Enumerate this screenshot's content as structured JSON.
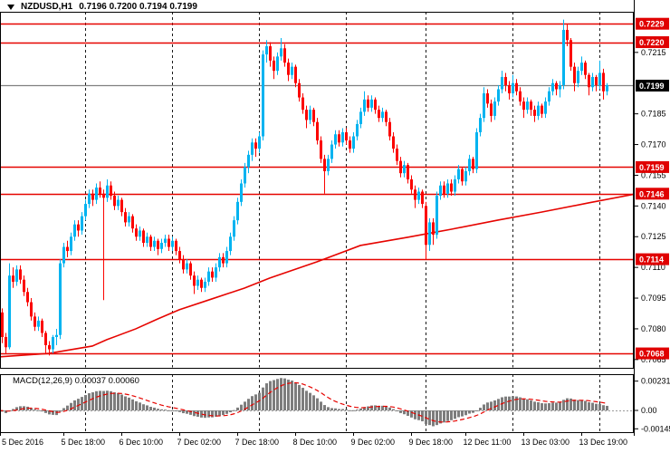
{
  "window": {
    "symbol_period": "NZDUSD,H1",
    "ohlc_line": "0.7196 0.7200 0.7194 0.7199"
  },
  "indicator": {
    "macd_label": "MACD(12,26,9) 0.00037 0.00060"
  },
  "colors": {
    "bull": "#00b3f0",
    "bear": "#fb0300",
    "level_line": "#e60400",
    "level_badge": "#e00000",
    "ma_line": "#e60400",
    "current_line": "#808080",
    "current_badge": "#000000",
    "histogram": "#7d7d7d",
    "signal_line": "#e60400",
    "zero_line": "#9a9a9a",
    "separator": "#1a1a1a",
    "axis_text": "#000000",
    "border": "#000000"
  },
  "price_axis": {
    "ticks": [
      {
        "label": "0.7215",
        "price": 0.7215
      },
      {
        "label": "0.7185",
        "price": 0.7185
      },
      {
        "label": "0.7170",
        "price": 0.717
      },
      {
        "label": "0.7155",
        "price": 0.7155
      },
      {
        "label": "0.7140",
        "price": 0.714
      },
      {
        "label": "0.7125",
        "price": 0.7125
      },
      {
        "label": "0.7110",
        "price": 0.711
      },
      {
        "label": "0.7095",
        "price": 0.7095
      },
      {
        "label": "0.7080",
        "price": 0.708
      },
      {
        "label": "0.7065",
        "price": 0.7065
      }
    ],
    "current": {
      "label": "0.7199",
      "price": 0.7199
    }
  },
  "time_axis": {
    "labels": [
      {
        "text": "5 Dec 2016",
        "bar": 0
      },
      {
        "text": "5 Dec 18:00",
        "bar": 18
      },
      {
        "text": "6 Dec 10:00",
        "bar": 34
      },
      {
        "text": "7 Dec 02:00",
        "bar": 50
      },
      {
        "text": "7 Dec 18:00",
        "bar": 66
      },
      {
        "text": "8 Dec 10:00",
        "bar": 82
      },
      {
        "text": "9 Dec 02:00",
        "bar": 98
      },
      {
        "text": "9 Dec 18:00",
        "bar": 114
      },
      {
        "text": "12 Dec 11:00",
        "bar": 129
      },
      {
        "text": "13 Dec 03:00",
        "bar": 145
      },
      {
        "text": "13 Dec 19:00",
        "bar": 161
      }
    ]
  },
  "chart_data": {
    "type": "candlestick",
    "symbol": "NZDUSD",
    "timeframe": "H1",
    "title": "NZDUSD,H1 0.7196 0.7200 0.7194 0.7199",
    "grid": false,
    "price_range_visible": [
      0.706,
      0.7236
    ],
    "horizontal_levels": [
      {
        "price": 0.7229,
        "label": "0.7229"
      },
      {
        "price": 0.722,
        "label": "0.7220"
      },
      {
        "price": 0.7159,
        "label": "0.7159"
      },
      {
        "price": 0.7146,
        "label": "0.7146"
      },
      {
        "price": 0.7114,
        "label": "0.7114"
      },
      {
        "price": 0.7068,
        "label": "0.7068"
      }
    ],
    "current_price": 0.7199,
    "day_separator_bars": [
      24,
      48,
      72,
      96,
      118,
      142,
      166
    ],
    "ma_trend_line": [
      [
        0,
        0.70663
      ],
      [
        14,
        0.7068
      ],
      [
        26,
        0.70716
      ],
      [
        30,
        0.70747
      ],
      [
        38,
        0.708
      ],
      [
        44,
        0.70848
      ],
      [
        50,
        0.70893
      ],
      [
        59,
        0.70946
      ],
      [
        68,
        0.70999
      ],
      [
        75,
        0.71048
      ],
      [
        88,
        0.71127
      ],
      [
        100,
        0.71207
      ],
      [
        113,
        0.71247
      ],
      [
        125,
        0.71286
      ],
      [
        138,
        0.71331
      ],
      [
        150,
        0.7137
      ],
      [
        163,
        0.71415
      ],
      [
        176,
        0.71459
      ]
    ],
    "ohlc": [
      [
        0.71,
        0.7102,
        0.7086,
        0.7088
      ],
      [
        0.7088,
        0.709,
        0.7073,
        0.7076
      ],
      [
        0.7076,
        0.7078,
        0.7068,
        0.7071
      ],
      [
        0.7071,
        0.7112,
        0.707,
        0.7106
      ],
      [
        0.7106,
        0.711,
        0.71,
        0.7103
      ],
      [
        0.7103,
        0.7111,
        0.7101,
        0.7109
      ],
      [
        0.7109,
        0.7111,
        0.7102,
        0.7104
      ],
      [
        0.7104,
        0.7106,
        0.7096,
        0.7098
      ],
      [
        0.7098,
        0.71,
        0.7091,
        0.7093
      ],
      [
        0.7093,
        0.7095,
        0.7084,
        0.7086
      ],
      [
        0.7086,
        0.7088,
        0.7079,
        0.7081
      ],
      [
        0.7081,
        0.7086,
        0.7079,
        0.7084
      ],
      [
        0.7084,
        0.7085,
        0.7076,
        0.7078
      ],
      [
        0.7078,
        0.7079,
        0.7068,
        0.7072
      ],
      [
        0.7072,
        0.7074,
        0.7067,
        0.707
      ],
      [
        0.707,
        0.7077,
        0.7068,
        0.7076
      ],
      [
        0.7076,
        0.708,
        0.7072,
        0.7077
      ],
      [
        0.7077,
        0.7114,
        0.7075,
        0.7112
      ],
      [
        0.7112,
        0.7122,
        0.711,
        0.712
      ],
      [
        0.712,
        0.7123,
        0.7115,
        0.7118
      ],
      [
        0.7118,
        0.7127,
        0.7116,
        0.7125
      ],
      [
        0.7125,
        0.7133,
        0.7123,
        0.7131
      ],
      [
        0.7131,
        0.7133,
        0.7125,
        0.7128
      ],
      [
        0.7128,
        0.7137,
        0.7126,
        0.7135
      ],
      [
        0.7135,
        0.7143,
        0.7133,
        0.7141
      ],
      [
        0.7141,
        0.7148,
        0.7139,
        0.7146
      ],
      [
        0.7146,
        0.7148,
        0.714,
        0.7143
      ],
      [
        0.7143,
        0.7151,
        0.7141,
        0.7149
      ],
      [
        0.7149,
        0.7152,
        0.7144,
        0.7146
      ],
      [
        0.7146,
        0.7148,
        0.7094,
        0.7144
      ],
      [
        0.7144,
        0.7153,
        0.7142,
        0.715
      ],
      [
        0.715,
        0.7152,
        0.7143,
        0.7145
      ],
      [
        0.7145,
        0.7147,
        0.7138,
        0.714
      ],
      [
        0.714,
        0.7145,
        0.7138,
        0.7143
      ],
      [
        0.7143,
        0.7144,
        0.7135,
        0.7137
      ],
      [
        0.7137,
        0.7139,
        0.713,
        0.7132
      ],
      [
        0.7132,
        0.7137,
        0.713,
        0.7135
      ],
      [
        0.7135,
        0.7136,
        0.7127,
        0.7129
      ],
      [
        0.7129,
        0.7131,
        0.7123,
        0.7125
      ],
      [
        0.7125,
        0.713,
        0.7123,
        0.7128
      ],
      [
        0.7128,
        0.7129,
        0.712,
        0.7122
      ],
      [
        0.7122,
        0.7127,
        0.712,
        0.7125
      ],
      [
        0.7125,
        0.7126,
        0.7118,
        0.712
      ],
      [
        0.712,
        0.7125,
        0.7118,
        0.7123
      ],
      [
        0.7123,
        0.7124,
        0.7116,
        0.7119
      ],
      [
        0.7119,
        0.7124,
        0.7117,
        0.7122
      ],
      [
        0.7122,
        0.7126,
        0.712,
        0.7124
      ],
      [
        0.7124,
        0.7126,
        0.7118,
        0.712
      ],
      [
        0.712,
        0.7125,
        0.7118,
        0.7123
      ],
      [
        0.7123,
        0.7124,
        0.7116,
        0.7118
      ],
      [
        0.7118,
        0.712,
        0.7112,
        0.7114
      ],
      [
        0.7114,
        0.7116,
        0.7107,
        0.7109
      ],
      [
        0.7109,
        0.7114,
        0.7107,
        0.7112
      ],
      [
        0.7112,
        0.7113,
        0.7104,
        0.7106
      ],
      [
        0.7106,
        0.7108,
        0.7097,
        0.7101
      ],
      [
        0.7101,
        0.7106,
        0.7099,
        0.7104
      ],
      [
        0.7104,
        0.7105,
        0.7098,
        0.71
      ],
      [
        0.71,
        0.7105,
        0.7098,
        0.7103
      ],
      [
        0.7103,
        0.711,
        0.7101,
        0.7108
      ],
      [
        0.7108,
        0.711,
        0.7103,
        0.7105
      ],
      [
        0.7105,
        0.7112,
        0.7103,
        0.711
      ],
      [
        0.711,
        0.7117,
        0.7108,
        0.7115
      ],
      [
        0.7115,
        0.7117,
        0.711,
        0.7112
      ],
      [
        0.7112,
        0.712,
        0.711,
        0.7118
      ],
      [
        0.7118,
        0.7127,
        0.7116,
        0.7125
      ],
      [
        0.7125,
        0.7135,
        0.7123,
        0.7133
      ],
      [
        0.7133,
        0.7144,
        0.7131,
        0.7142
      ],
      [
        0.7142,
        0.7153,
        0.714,
        0.7151
      ],
      [
        0.7151,
        0.7161,
        0.7149,
        0.7159
      ],
      [
        0.7159,
        0.7167,
        0.7156,
        0.7165
      ],
      [
        0.7165,
        0.7173,
        0.7162,
        0.7171
      ],
      [
        0.7171,
        0.7173,
        0.7164,
        0.7168
      ],
      [
        0.7168,
        0.7176,
        0.7166,
        0.7174
      ],
      [
        0.7174,
        0.7216,
        0.7172,
        0.7214
      ],
      [
        0.7214,
        0.7221,
        0.721,
        0.7218
      ],
      [
        0.7218,
        0.722,
        0.7208,
        0.7211
      ],
      [
        0.7211,
        0.7213,
        0.7202,
        0.7206
      ],
      [
        0.7206,
        0.7215,
        0.7204,
        0.7213
      ],
      [
        0.7213,
        0.7222,
        0.7211,
        0.7217
      ],
      [
        0.7217,
        0.7219,
        0.7208,
        0.721
      ],
      [
        0.721,
        0.7212,
        0.7201,
        0.7204
      ],
      [
        0.7204,
        0.721,
        0.7202,
        0.7208
      ],
      [
        0.7208,
        0.7209,
        0.7198,
        0.72
      ],
      [
        0.72,
        0.7202,
        0.7191,
        0.7193
      ],
      [
        0.7193,
        0.7195,
        0.7185,
        0.7187
      ],
      [
        0.7187,
        0.7189,
        0.7178,
        0.7182
      ],
      [
        0.7182,
        0.7189,
        0.718,
        0.7187
      ],
      [
        0.7187,
        0.7188,
        0.7179,
        0.7181
      ],
      [
        0.7181,
        0.7183,
        0.717,
        0.7172
      ],
      [
        0.7172,
        0.7174,
        0.7161,
        0.7163
      ],
      [
        0.7163,
        0.7165,
        0.7146,
        0.7157
      ],
      [
        0.7157,
        0.7165,
        0.7155,
        0.7163
      ],
      [
        0.7163,
        0.7172,
        0.7161,
        0.717
      ],
      [
        0.717,
        0.7177,
        0.7168,
        0.7175
      ],
      [
        0.7175,
        0.7177,
        0.7169,
        0.7171
      ],
      [
        0.7171,
        0.7178,
        0.7169,
        0.7176
      ],
      [
        0.7176,
        0.7178,
        0.717,
        0.7172
      ],
      [
        0.7172,
        0.7174,
        0.7166,
        0.7168
      ],
      [
        0.7168,
        0.7176,
        0.7166,
        0.7174
      ],
      [
        0.7174,
        0.7182,
        0.7172,
        0.718
      ],
      [
        0.718,
        0.7188,
        0.7178,
        0.7186
      ],
      [
        0.7186,
        0.7196,
        0.7184,
        0.7192
      ],
      [
        0.7192,
        0.7194,
        0.7186,
        0.7188
      ],
      [
        0.7188,
        0.7194,
        0.7186,
        0.7192
      ],
      [
        0.7192,
        0.7193,
        0.7185,
        0.7187
      ],
      [
        0.7187,
        0.7189,
        0.7181,
        0.7183
      ],
      [
        0.7183,
        0.7188,
        0.7181,
        0.7186
      ],
      [
        0.7186,
        0.7187,
        0.7179,
        0.7181
      ],
      [
        0.7181,
        0.7183,
        0.7172,
        0.7174
      ],
      [
        0.7174,
        0.7176,
        0.7166,
        0.7168
      ],
      [
        0.7168,
        0.717,
        0.716,
        0.7162
      ],
      [
        0.7162,
        0.7164,
        0.7154,
        0.7156
      ],
      [
        0.7156,
        0.7162,
        0.7154,
        0.716
      ],
      [
        0.716,
        0.7161,
        0.7151,
        0.7153
      ],
      [
        0.7153,
        0.7155,
        0.7146,
        0.7148
      ],
      [
        0.7148,
        0.715,
        0.7139,
        0.7143
      ],
      [
        0.7143,
        0.7149,
        0.7141,
        0.7147
      ],
      [
        0.7147,
        0.7148,
        0.7139,
        0.7141
      ],
      [
        0.714,
        0.7142,
        0.7114,
        0.7121
      ],
      [
        0.7121,
        0.7134,
        0.7118,
        0.7132
      ],
      [
        0.7132,
        0.7134,
        0.7121,
        0.7126
      ],
      [
        0.7126,
        0.7147,
        0.7124,
        0.7145
      ],
      [
        0.7145,
        0.7152,
        0.7143,
        0.715
      ],
      [
        0.715,
        0.7152,
        0.7144,
        0.7146
      ],
      [
        0.7146,
        0.7153,
        0.7144,
        0.7151
      ],
      [
        0.7151,
        0.7153,
        0.7145,
        0.7147
      ],
      [
        0.7147,
        0.7155,
        0.7145,
        0.7153
      ],
      [
        0.7153,
        0.716,
        0.7151,
        0.7158
      ],
      [
        0.7158,
        0.7159,
        0.715,
        0.7152
      ],
      [
        0.7152,
        0.7159,
        0.715,
        0.7157
      ],
      [
        0.7157,
        0.7165,
        0.7155,
        0.7163
      ],
      [
        0.7163,
        0.7164,
        0.7156,
        0.7158
      ],
      [
        0.7158,
        0.7178,
        0.7156,
        0.7176
      ],
      [
        0.7176,
        0.7185,
        0.7174,
        0.7183
      ],
      [
        0.7183,
        0.7198,
        0.7181,
        0.7195
      ],
      [
        0.7195,
        0.7197,
        0.7188,
        0.719
      ],
      [
        0.719,
        0.7192,
        0.7181,
        0.7184
      ],
      [
        0.7184,
        0.7193,
        0.7182,
        0.7191
      ],
      [
        0.7191,
        0.7199,
        0.7189,
        0.7197
      ],
      [
        0.7197,
        0.7206,
        0.7195,
        0.7203
      ],
      [
        0.7203,
        0.7205,
        0.7196,
        0.7199
      ],
      [
        0.7199,
        0.7201,
        0.7192,
        0.7195
      ],
      [
        0.7195,
        0.7204,
        0.7193,
        0.72
      ],
      [
        0.72,
        0.7202,
        0.7194,
        0.7196
      ],
      [
        0.7196,
        0.7198,
        0.7189,
        0.7191
      ],
      [
        0.7191,
        0.7193,
        0.7183,
        0.7187
      ],
      [
        0.7187,
        0.7193,
        0.7185,
        0.7191
      ],
      [
        0.7191,
        0.7192,
        0.7184,
        0.7187
      ],
      [
        0.7187,
        0.7189,
        0.7181,
        0.7184
      ],
      [
        0.7184,
        0.7191,
        0.7182,
        0.7189
      ],
      [
        0.7189,
        0.719,
        0.7183,
        0.7185
      ],
      [
        0.7185,
        0.7193,
        0.7183,
        0.7191
      ],
      [
        0.7191,
        0.7198,
        0.7189,
        0.7196
      ],
      [
        0.7196,
        0.7202,
        0.7194,
        0.72
      ],
      [
        0.72,
        0.7201,
        0.7194,
        0.7197
      ],
      [
        0.7197,
        0.7201,
        0.7193,
        0.7199
      ],
      [
        0.7199,
        0.7231,
        0.7197,
        0.7226
      ],
      [
        0.7226,
        0.7229,
        0.7218,
        0.7221
      ],
      [
        0.7221,
        0.7222,
        0.7206,
        0.7208
      ],
      [
        0.7208,
        0.721,
        0.7196,
        0.72
      ],
      [
        0.72,
        0.7208,
        0.7198,
        0.7206
      ],
      [
        0.7206,
        0.7213,
        0.7204,
        0.721
      ],
      [
        0.721,
        0.7211,
        0.7202,
        0.7204
      ],
      [
        0.7204,
        0.7205,
        0.7194,
        0.7198
      ],
      [
        0.7198,
        0.7205,
        0.7196,
        0.7203
      ],
      [
        0.7203,
        0.7204,
        0.7196,
        0.7199
      ],
      [
        0.7199,
        0.7211,
        0.7197,
        0.7205
      ],
      [
        0.7205,
        0.7207,
        0.7192,
        0.7196
      ],
      [
        0.7196,
        0.72,
        0.7194,
        0.7199
      ]
    ],
    "macd": {
      "fast": 12,
      "slow": 26,
      "signal": 9,
      "macd_value": 0.00037,
      "signal_value": 0.0006,
      "axis_ticks": [
        {
          "label": "0.00231",
          "value": 0.00231
        },
        {
          "label": "0.00",
          "value": 0
        },
        {
          "label": "-0.00145",
          "value": -0.00145
        }
      ]
    }
  }
}
